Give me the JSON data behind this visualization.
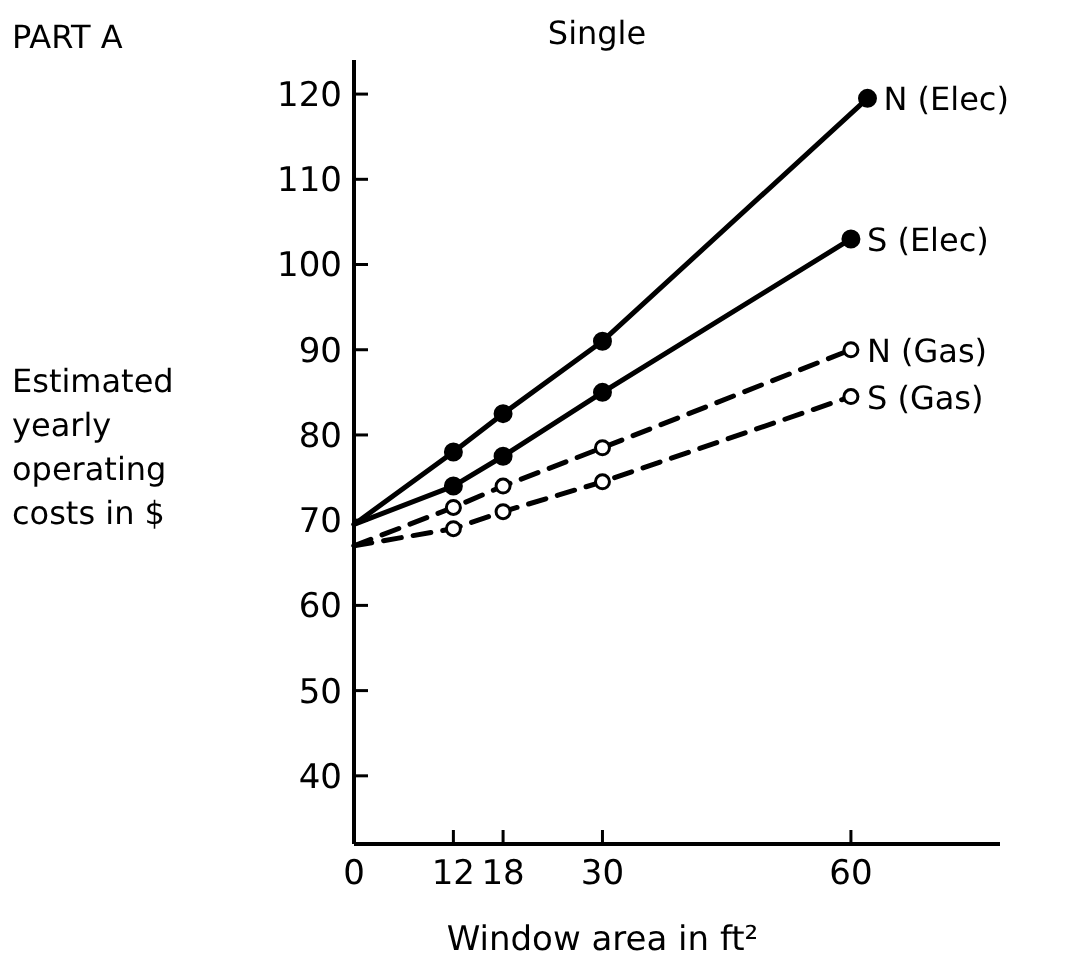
{
  "chart_data": {
    "type": "line",
    "title": "Single",
    "annotations": [
      "PART A"
    ],
    "xlabel": "Window area in ft²",
    "ylabel": "Estimated yearly operating costs in $",
    "xlim": [
      0,
      78
    ],
    "xticks": [
      0,
      12,
      18,
      30,
      60
    ],
    "ylim": [
      32,
      124
    ],
    "yticks": [
      40,
      50,
      60,
      70,
      80,
      90,
      100,
      110,
      120
    ],
    "marker": "circle",
    "series": [
      {
        "name": "N (Elec)",
        "color": "#000000",
        "line_style": "solid",
        "x": [
          0,
          12,
          18,
          30,
          62
        ],
        "values": [
          69.5,
          78,
          82.5,
          91,
          119.5
        ]
      },
      {
        "name": "S (Elec)",
        "color": "#000000",
        "line_style": "solid",
        "x": [
          0,
          12,
          18,
          30,
          60
        ],
        "values": [
          69.5,
          74,
          77.5,
          85,
          103
        ]
      },
      {
        "name": "N (Gas)",
        "color": "#000000",
        "line_style": "dashed",
        "x": [
          0,
          12,
          18,
          30,
          60
        ],
        "values": [
          67,
          71.5,
          74,
          78.5,
          90
        ]
      },
      {
        "name": "S (Gas)",
        "color": "#000000",
        "line_style": "dashed",
        "x": [
          0,
          12,
          18,
          30,
          60
        ],
        "values": [
          67,
          69,
          71,
          74.5,
          84.5
        ]
      }
    ]
  }
}
